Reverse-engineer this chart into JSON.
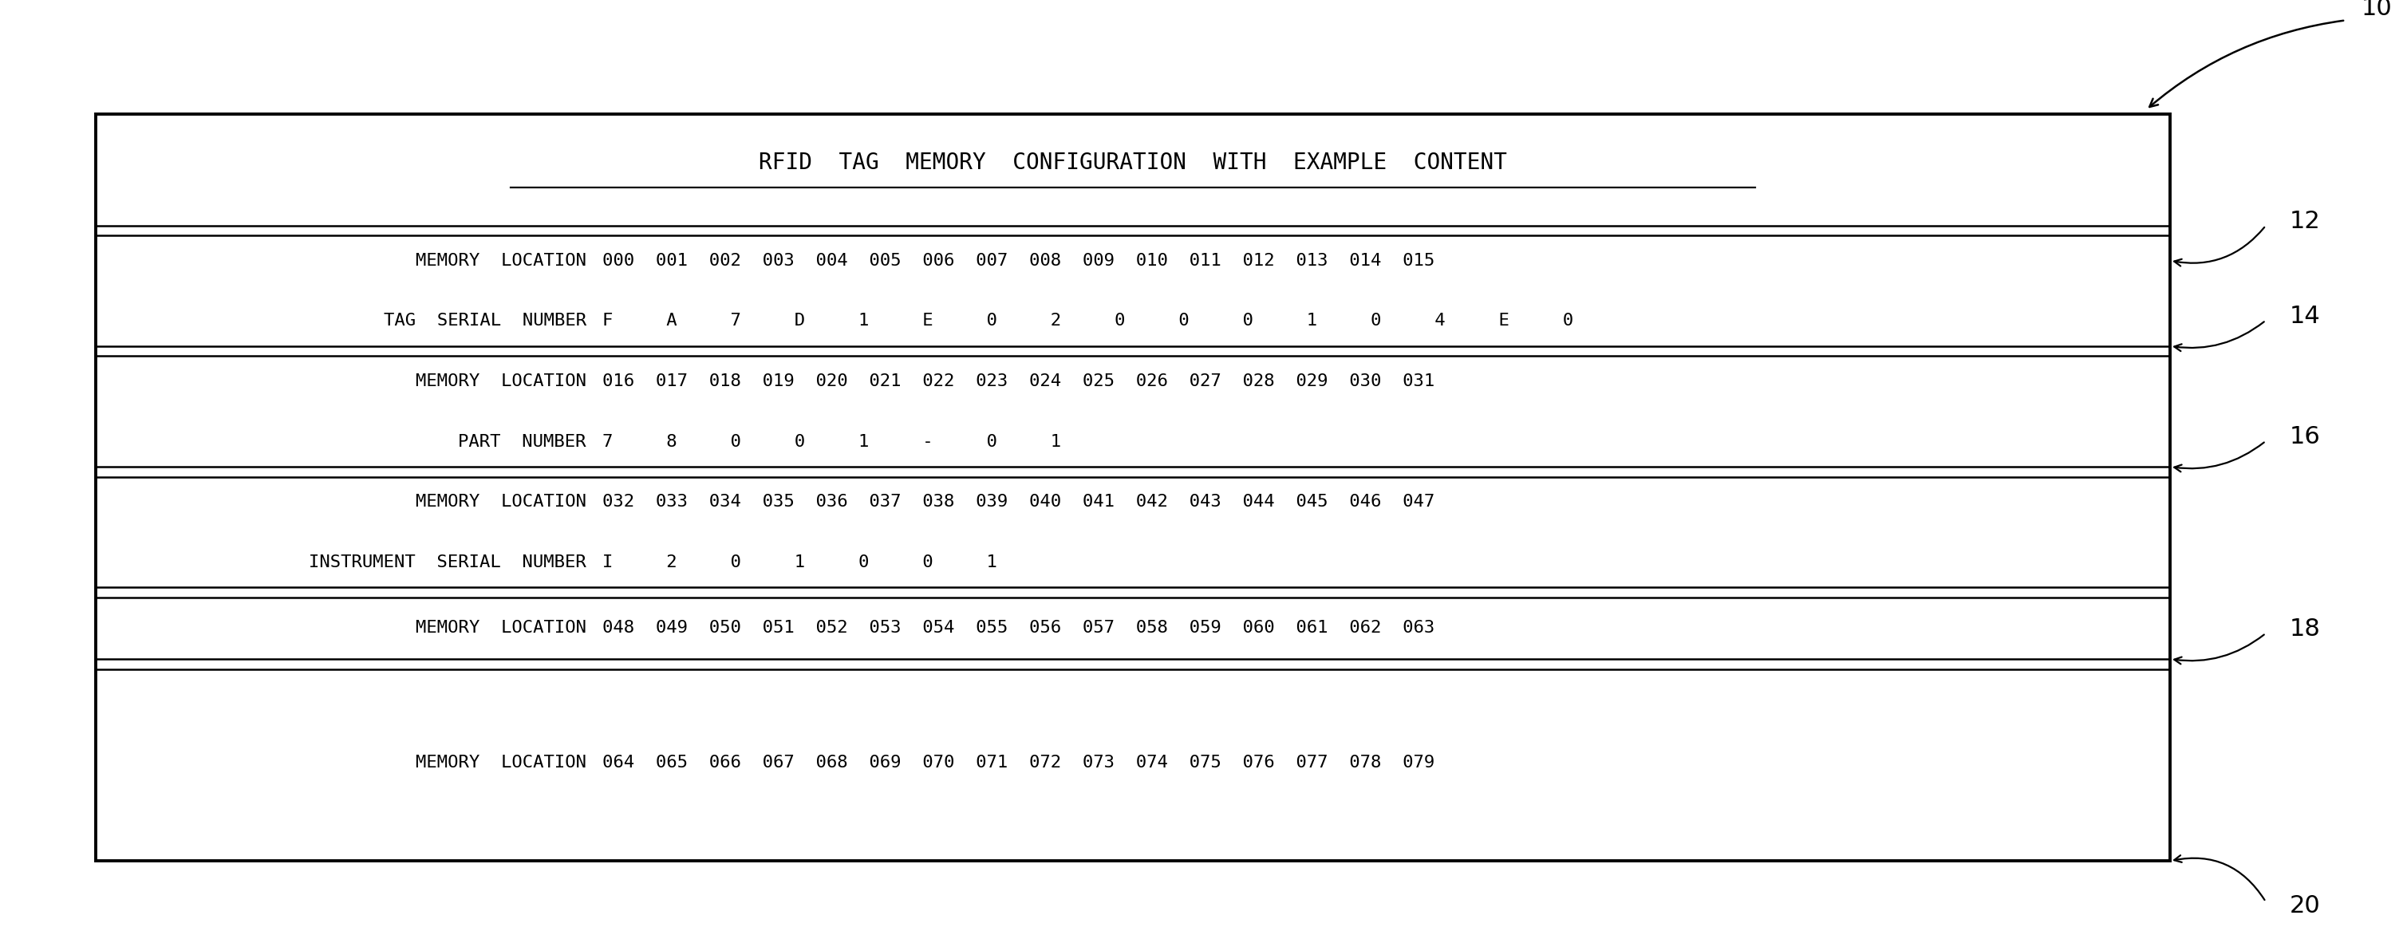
{
  "title": "RFID  TAG  MEMORY  CONFIGURATION  WITH  EXAMPLE  CONTENT",
  "background_color": "#ffffff",
  "fig_width": 30.17,
  "fig_height": 11.67,
  "ref_labels": [
    "10",
    "12",
    "14",
    "16",
    "18",
    "20"
  ],
  "sections": [
    {
      "row1_label": "MEMORY  LOCATION",
      "row1_values": "000  001  002  003  004  005  006  007  008  009  010  011  012  013  014  015",
      "row2_label": "TAG  SERIAL  NUMBER",
      "row2_values": "F     A     7     D     1     E     0     2     0     0     0     1     0     4     E     0",
      "ref1": "12",
      "ref2": "14"
    },
    {
      "row1_label": "MEMORY  LOCATION",
      "row1_values": "016  017  018  019  020  021  022  023  024  025  026  027  028  029  030  031",
      "row2_label": "PART  NUMBER",
      "row2_values": "7     8     0     0     1     -     0     1",
      "ref1": "16",
      "ref2": null
    },
    {
      "row1_label": "MEMORY  LOCATION",
      "row1_values": "032  033  034  035  036  037  038  039  040  041  042  043  044  045  046  047",
      "row2_label": "INSTRUMENT  SERIAL  NUMBER",
      "row2_values": "I     2     0     1     0     0     1",
      "ref1": null,
      "ref2": null
    }
  ],
  "single_sections": [
    {
      "row_label": "MEMORY  LOCATION",
      "row_values": "048  049  050  051  052  053  054  055  056  057  058  059  060  061  062  063",
      "ref": "18"
    },
    {
      "row_label": "MEMORY  LOCATION",
      "row_values": "064  065  066  067  068  069  070  071  072  073  074  075  076  077  078  079",
      "ref": "20"
    }
  ],
  "font_size": 16,
  "title_font_size": 20
}
